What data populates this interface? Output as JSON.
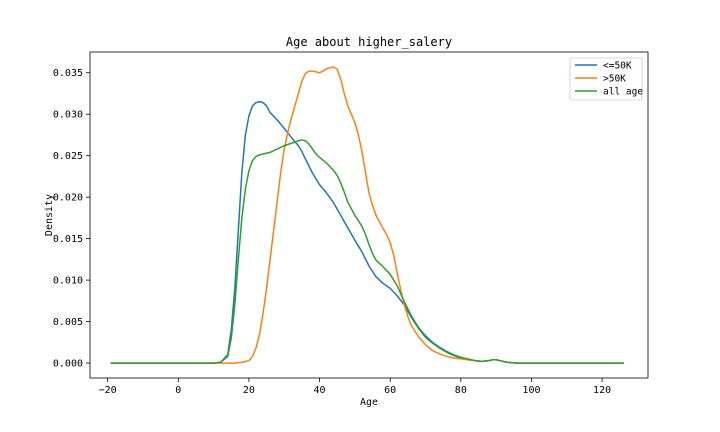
{
  "chart_data": {
    "type": "line",
    "title": "Age about higher_salery",
    "xlabel": "Age",
    "ylabel": "Density",
    "xlim": [
      -25,
      133
    ],
    "ylim": [
      -0.0018,
      0.0375
    ],
    "x_ticks": [
      -20,
      0,
      20,
      40,
      60,
      80,
      100,
      120
    ],
    "x_tick_labels": [
      "−20",
      "0",
      "20",
      "40",
      "60",
      "80",
      "100",
      "120"
    ],
    "y_ticks": [
      0.0,
      0.005,
      0.01,
      0.015,
      0.02,
      0.025,
      0.03,
      0.035
    ],
    "y_tick_labels": [
      "0.000",
      "0.005",
      "0.010",
      "0.015",
      "0.020",
      "0.025",
      "0.030",
      "0.035"
    ],
    "grid": false,
    "legend_position": "upper right",
    "series": [
      {
        "name": "<=50K",
        "color": "#1f77b4",
        "points": [
          [
            -19,
            0
          ],
          [
            0,
            0
          ],
          [
            10,
            0
          ],
          [
            12,
            0.0001
          ],
          [
            14,
            0.001
          ],
          [
            15,
            0.004
          ],
          [
            16,
            0.009
          ],
          [
            17,
            0.016
          ],
          [
            18,
            0.023
          ],
          [
            19,
            0.0275
          ],
          [
            20,
            0.0298
          ],
          [
            21,
            0.031
          ],
          [
            22,
            0.0314
          ],
          [
            23,
            0.0315
          ],
          [
            24,
            0.0314
          ],
          [
            25,
            0.031
          ],
          [
            26,
            0.0302
          ],
          [
            28,
            0.0293
          ],
          [
            30,
            0.0283
          ],
          [
            32,
            0.0272
          ],
          [
            34,
            0.0262
          ],
          [
            35,
            0.0255
          ],
          [
            36,
            0.0246
          ],
          [
            38,
            0.0229
          ],
          [
            40,
            0.0215
          ],
          [
            42,
            0.0205
          ],
          [
            44,
            0.0193
          ],
          [
            46,
            0.0178
          ],
          [
            48,
            0.0163
          ],
          [
            50,
            0.0148
          ],
          [
            52,
            0.0134
          ],
          [
            54,
            0.0117
          ],
          [
            56,
            0.0104
          ],
          [
            58,
            0.0096
          ],
          [
            60,
            0.009
          ],
          [
            62,
            0.0081
          ],
          [
            64,
            0.007
          ],
          [
            66,
            0.0055
          ],
          [
            68,
            0.0042
          ],
          [
            70,
            0.0031
          ],
          [
            72,
            0.0024
          ],
          [
            74,
            0.0018
          ],
          [
            76,
            0.0013
          ],
          [
            78,
            0.0009
          ],
          [
            80,
            0.0006
          ],
          [
            82,
            0.0004
          ],
          [
            84,
            0.0003
          ],
          [
            86,
            0.0002
          ],
          [
            88,
            0.0003
          ],
          [
            89,
            0.0004
          ],
          [
            90,
            0.0004
          ],
          [
            91,
            0.0003
          ],
          [
            93,
            0.0001
          ],
          [
            96,
            0
          ],
          [
            100,
            0
          ],
          [
            126,
            0
          ]
        ]
      },
      {
        "name": ">50K",
        "color": "#ff7f0e",
        "points": [
          [
            -19,
            0
          ],
          [
            0,
            0
          ],
          [
            16,
            0
          ],
          [
            18,
            0.0001
          ],
          [
            20,
            0.0003
          ],
          [
            21,
            0.0008
          ],
          [
            22,
            0.0018
          ],
          [
            23,
            0.0035
          ],
          [
            24,
            0.006
          ],
          [
            25,
            0.009
          ],
          [
            26,
            0.0125
          ],
          [
            27,
            0.016
          ],
          [
            28,
            0.0195
          ],
          [
            29,
            0.023
          ],
          [
            30,
            0.0258
          ],
          [
            31,
            0.0278
          ],
          [
            32,
            0.0295
          ],
          [
            33,
            0.031
          ],
          [
            34,
            0.0325
          ],
          [
            35,
            0.034
          ],
          [
            36,
            0.0349
          ],
          [
            37,
            0.0352
          ],
          [
            38,
            0.0352
          ],
          [
            39,
            0.0351
          ],
          [
            40,
            0.035
          ],
          [
            41,
            0.0352
          ],
          [
            42,
            0.0355
          ],
          [
            43,
            0.0356
          ],
          [
            44,
            0.0357
          ],
          [
            45,
            0.0354
          ],
          [
            46,
            0.0342
          ],
          [
            47,
            0.0325
          ],
          [
            48,
            0.031
          ],
          [
            49,
            0.03
          ],
          [
            50,
            0.029
          ],
          [
            51,
            0.0275
          ],
          [
            52,
            0.0255
          ],
          [
            53,
            0.023
          ],
          [
            54,
            0.0205
          ],
          [
            55,
            0.019
          ],
          [
            56,
            0.0178
          ],
          [
            57,
            0.017
          ],
          [
            58,
            0.0162
          ],
          [
            59,
            0.0155
          ],
          [
            60,
            0.0145
          ],
          [
            61,
            0.013
          ],
          [
            62,
            0.0108
          ],
          [
            63,
            0.0088
          ],
          [
            64,
            0.007
          ],
          [
            65,
            0.0056
          ],
          [
            66,
            0.0045
          ],
          [
            68,
            0.0032
          ],
          [
            70,
            0.0022
          ],
          [
            72,
            0.0015
          ],
          [
            74,
            0.0011
          ],
          [
            76,
            0.0008
          ],
          [
            78,
            0.0006
          ],
          [
            80,
            0.0005
          ],
          [
            82,
            0.0004
          ],
          [
            84,
            0.0003
          ],
          [
            86,
            0.0002
          ],
          [
            88,
            0.0003
          ],
          [
            89,
            0.0004
          ],
          [
            90,
            0.0004
          ],
          [
            91,
            0.0003
          ],
          [
            93,
            0.0001
          ],
          [
            96,
            0
          ],
          [
            100,
            0
          ],
          [
            126,
            0
          ]
        ]
      },
      {
        "name": "all age",
        "color": "#2ca02c",
        "points": [
          [
            -19,
            0
          ],
          [
            0,
            0
          ],
          [
            10,
            0
          ],
          [
            12,
            0.0001
          ],
          [
            14,
            0.0008
          ],
          [
            15,
            0.003
          ],
          [
            16,
            0.007
          ],
          [
            17,
            0.0125
          ],
          [
            18,
            0.0175
          ],
          [
            19,
            0.021
          ],
          [
            20,
            0.0232
          ],
          [
            21,
            0.0244
          ],
          [
            22,
            0.0249
          ],
          [
            23,
            0.0251
          ],
          [
            24,
            0.0252
          ],
          [
            26,
            0.0254
          ],
          [
            28,
            0.0258
          ],
          [
            30,
            0.0262
          ],
          [
            32,
            0.0265
          ],
          [
            34,
            0.0268
          ],
          [
            35,
            0.0269
          ],
          [
            36,
            0.0268
          ],
          [
            37,
            0.0264
          ],
          [
            38,
            0.0258
          ],
          [
            39,
            0.0252
          ],
          [
            40,
            0.0248
          ],
          [
            42,
            0.0241
          ],
          [
            44,
            0.0232
          ],
          [
            45,
            0.0226
          ],
          [
            46,
            0.0217
          ],
          [
            47,
            0.0206
          ],
          [
            48,
            0.0194
          ],
          [
            50,
            0.0178
          ],
          [
            52,
            0.0165
          ],
          [
            53,
            0.0155
          ],
          [
            54,
            0.0143
          ],
          [
            55,
            0.0132
          ],
          [
            56,
            0.0124
          ],
          [
            58,
            0.0116
          ],
          [
            60,
            0.0107
          ],
          [
            62,
            0.0093
          ],
          [
            64,
            0.0074
          ],
          [
            66,
            0.0057
          ],
          [
            68,
            0.0043
          ],
          [
            70,
            0.0033
          ],
          [
            72,
            0.0025
          ],
          [
            74,
            0.0019
          ],
          [
            76,
            0.0014
          ],
          [
            78,
            0.001
          ],
          [
            80,
            0.0007
          ],
          [
            82,
            0.0005
          ],
          [
            84,
            0.0003
          ],
          [
            86,
            0.0002
          ],
          [
            88,
            0.0003
          ],
          [
            89,
            0.0004
          ],
          [
            90,
            0.0004
          ],
          [
            91,
            0.0003
          ],
          [
            93,
            0.0001
          ],
          [
            96,
            0
          ],
          [
            100,
            0
          ],
          [
            126,
            0
          ]
        ]
      }
    ]
  }
}
